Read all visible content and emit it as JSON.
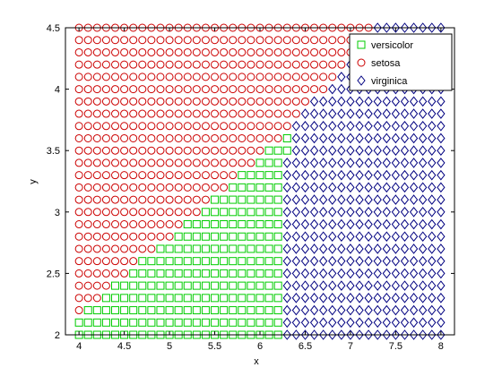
{
  "chart_data": {
    "type": "scatter",
    "xlabel": "x",
    "ylabel": "y",
    "xlim": [
      3.85,
      8.15
    ],
    "ylim": [
      2.0,
      4.5
    ],
    "xticks": [
      4,
      4.5,
      5,
      5.5,
      6,
      6.5,
      7,
      7.5,
      8
    ],
    "xtick_labels": [
      "4",
      "4.5",
      "5",
      "5.5",
      "6",
      "6.5",
      "7",
      "7.5",
      "8"
    ],
    "yticks": [
      2,
      2.5,
      3,
      3.5,
      4,
      4.5
    ],
    "ytick_labels": [
      "2",
      "2.5",
      "3",
      "3.5",
      "4",
      "4.5"
    ],
    "grid": false,
    "legend_position": "top-right",
    "grid_step": 0.1,
    "x_range": [
      4.0,
      8.0
    ],
    "y_range": [
      2.0,
      4.5
    ],
    "series": [
      {
        "name": "versicolor",
        "marker": "square",
        "color": "#00cc00"
      },
      {
        "name": "setosa",
        "marker": "circle",
        "color": "#cc0000"
      },
      {
        "name": "virginica",
        "marker": "diamond",
        "color": "#000080"
      }
    ],
    "regions": {
      "virginica_min_x_by_y": [
        {
          "y": 2.0,
          "x": 6.3
        },
        {
          "y": 2.1,
          "x": 6.3
        },
        {
          "y": 2.2,
          "x": 6.3
        },
        {
          "y": 2.3,
          "x": 6.3
        },
        {
          "y": 2.4,
          "x": 6.3
        },
        {
          "y": 2.5,
          "x": 6.3
        },
        {
          "y": 2.6,
          "x": 6.3
        },
        {
          "y": 2.7,
          "x": 6.3
        },
        {
          "y": 2.8,
          "x": 6.3
        },
        {
          "y": 2.9,
          "x": 6.3
        },
        {
          "y": 3.0,
          "x": 6.3
        },
        {
          "y": 3.1,
          "x": 6.3
        },
        {
          "y": 3.2,
          "x": 6.3
        },
        {
          "y": 3.3,
          "x": 6.3
        },
        {
          "y": 3.4,
          "x": 6.3
        },
        {
          "y": 3.5,
          "x": 6.4
        },
        {
          "y": 3.6,
          "x": 6.4
        },
        {
          "y": 3.7,
          "x": 6.4
        },
        {
          "y": 3.8,
          "x": 6.5
        },
        {
          "y": 3.9,
          "x": 6.6
        },
        {
          "y": 4.0,
          "x": 6.8
        },
        {
          "y": 4.1,
          "x": 6.9
        },
        {
          "y": 4.2,
          "x": 7.0
        },
        {
          "y": 4.3,
          "x": 7.1
        },
        {
          "y": 4.4,
          "x": 7.2
        },
        {
          "y": 4.5,
          "x": 7.3
        }
      ],
      "versicolor_min_x_by_y": [
        {
          "y": 2.0,
          "x": 4.0
        },
        {
          "y": 2.1,
          "x": 4.0
        },
        {
          "y": 2.2,
          "x": 4.1
        },
        {
          "y": 2.3,
          "x": 4.3
        },
        {
          "y": 2.4,
          "x": 4.4
        },
        {
          "y": 2.5,
          "x": 4.6
        },
        {
          "y": 2.6,
          "x": 4.7
        },
        {
          "y": 2.7,
          "x": 4.9
        },
        {
          "y": 2.8,
          "x": 5.1
        },
        {
          "y": 2.9,
          "x": 5.2
        },
        {
          "y": 3.0,
          "x": 5.4
        },
        {
          "y": 3.1,
          "x": 5.5
        },
        {
          "y": 3.2,
          "x": 5.7
        },
        {
          "y": 3.3,
          "x": 5.8
        },
        {
          "y": 3.4,
          "x": 6.0
        },
        {
          "y": 3.5,
          "x": 6.1
        },
        {
          "y": 3.6,
          "x": 6.3
        }
      ]
    }
  }
}
